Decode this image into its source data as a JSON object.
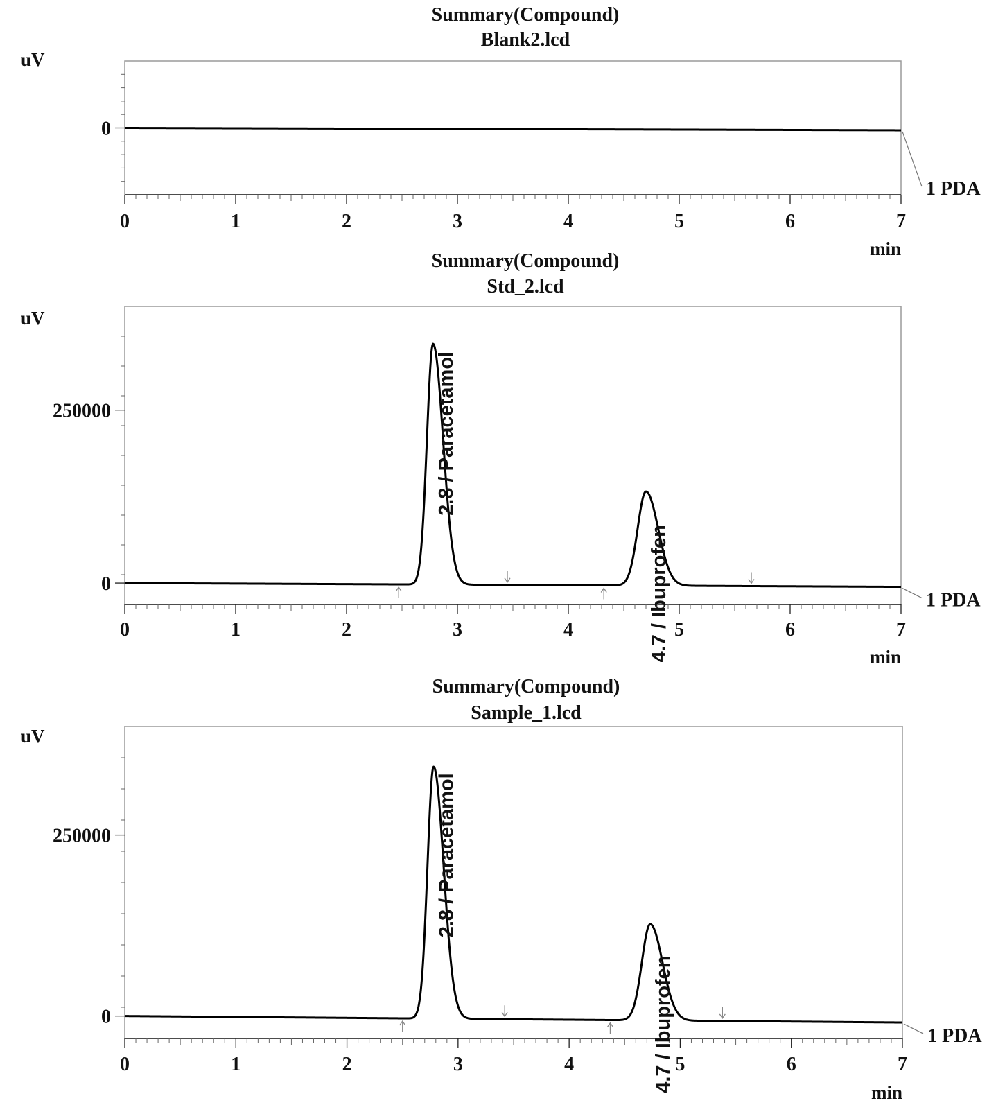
{
  "chart_data": [
    {
      "type": "line",
      "title": "Summary(Compound)",
      "subtitle": "Blank2.lcd",
      "ylabel": "uV",
      "xlabel": "min",
      "xlim": [
        0,
        7
      ],
      "ylim": [
        -390000,
        390000
      ],
      "x_ticks": [
        "0",
        "1",
        "2",
        "3",
        "4",
        "5",
        "6",
        "7"
      ],
      "y_ticks": [
        {
          "value": 0,
          "label": "0"
        }
      ],
      "series": [
        {
          "name": "1 PDA",
          "baseline": {
            "start": 0,
            "end": -14000
          },
          "peaks": []
        }
      ],
      "integration_markers": []
    },
    {
      "type": "line",
      "title": "Summary(Compound)",
      "subtitle": "Std_2.lcd",
      "ylabel": "uV",
      "xlabel": "min",
      "xlim": [
        0,
        7
      ],
      "ylim": [
        -31000,
        400000
      ],
      "x_ticks": [
        "0",
        "1",
        "2",
        "3",
        "4",
        "5",
        "6",
        "7"
      ],
      "y_ticks": [
        {
          "value": 0,
          "label": "0"
        },
        {
          "value": 250000,
          "label": "250000"
        }
      ],
      "series": [
        {
          "name": "1 PDA",
          "baseline": {
            "start": 0,
            "end": -5500
          },
          "peaks": [
            {
              "x": 2.78,
              "height": 348000,
              "sigma_left": 0.055,
              "sigma_right": 0.09,
              "label": "2.8 / Paracetamol"
            },
            {
              "x": 4.7,
              "height": 136000,
              "sigma_left": 0.075,
              "sigma_right": 0.11,
              "label": "4.7 / Ibuprofen"
            }
          ]
        }
      ],
      "integration_markers": [
        {
          "x": 2.47,
          "dir": "up"
        },
        {
          "x": 3.45,
          "dir": "down"
        },
        {
          "x": 4.32,
          "dir": "up"
        },
        {
          "x": 5.65,
          "dir": "down"
        }
      ]
    },
    {
      "type": "line",
      "title": "Summary(Compound)",
      "subtitle": "Sample_1.lcd",
      "ylabel": "uV",
      "xlabel": "min",
      "xlim": [
        0,
        7
      ],
      "ylim": [
        -31000,
        400000
      ],
      "x_ticks": [
        "0",
        "1",
        "2",
        "3",
        "4",
        "5",
        "6",
        "7"
      ],
      "y_ticks": [
        {
          "value": 0,
          "label": "0"
        },
        {
          "value": 250000,
          "label": "250000"
        }
      ],
      "series": [
        {
          "name": "1 PDA",
          "baseline": {
            "start": 0,
            "end": -9000
          },
          "peaks": [
            {
              "x": 2.78,
              "height": 348000,
              "sigma_left": 0.055,
              "sigma_right": 0.09,
              "label": "2.8 / Paracetamol"
            },
            {
              "x": 4.73,
              "height": 133000,
              "sigma_left": 0.075,
              "sigma_right": 0.11,
              "label": "4.7 / Ibuprofen"
            }
          ]
        }
      ],
      "integration_markers": [
        {
          "x": 2.5,
          "dir": "up"
        },
        {
          "x": 3.42,
          "dir": "down"
        },
        {
          "x": 4.37,
          "dir": "up"
        },
        {
          "x": 5.38,
          "dir": "down"
        }
      ]
    }
  ]
}
